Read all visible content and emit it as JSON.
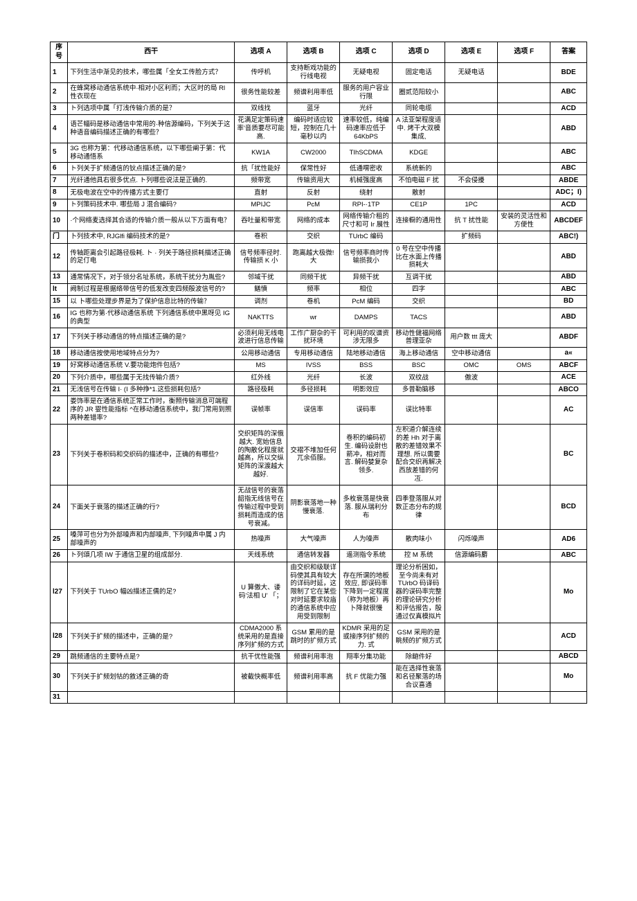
{
  "headers": [
    "序号",
    "西干",
    "选项 A",
    "选项 B",
    "选项 C",
    "选项 D",
    "选项 E",
    "选项 F",
    "答案"
  ],
  "rows": [
    [
      "1",
      "下列生活中渐见的技术，哪些属「全女工传脸方式？",
      "传呼机",
      "支持断戏功能的行线电视",
      "无疑电视",
      "固定电话",
      "无疑电话",
      "",
      "BDE"
    ],
    [
      "2",
      "在蜂窝移动通信系统中·相对小区利而；大区时的局 Rl 性衣现在",
      "很务性能较差",
      "频谱利用率低",
      "服务的用户容业行限",
      "圈贰范阳较小",
      "",
      "",
      "ABC"
    ],
    [
      "3",
      "ト列选项中属「打浅传输介质的是？",
      "双线找",
      "蓝牙",
      "光纤",
      "同轮电缆",
      "",
      "",
      "ACD"
    ],
    [
      "4",
      "语芒幅码是移动通信中常用的·种信源编码，下列关于这种语音编码描述正确的有哪些？",
      "花满足定策码速率'音质要尽可能高.",
      "编码时适应较短，控制在几十毫秒以内",
      "速率较低，纯编码速率应低于 64KbPS",
      "A 法亚架程度适中. 烤干大双模集成,",
      "",
      "",
      "ABD"
    ],
    [
      "5",
      "3G 也称为第：代移动通信系统，以下哪些阐于第：代移动通悟系",
      "KW1A",
      "CW2000",
      "TIhSCDMA",
      "KDGE",
      "",
      "",
      "ABC"
    ],
    [
      "6",
      "ト列关于扩频通信的钬点描述正确的是?",
      "抗「扰性能好",
      "保常性好",
      "低通喟密收",
      "系统新的",
      "",
      "",
      "ABC"
    ],
    [
      "7",
      "光纤通他具右很多优点. ト列哪些说法是正确的.",
      "频带宽",
      "传输资用大",
      "机械强度高",
      "不怕电磁 F 扰",
      "不会侵擾",
      "",
      "ABDE"
    ],
    [
      "8",
      "无极电波在空中的传播方式主要仃",
      "直射",
      "反射",
      "绕射",
      "散射",
      "",
      "",
      "ADC；I)"
    ],
    [
      "9",
      "ト列策码技术中. 哪些局 J 混合编码?",
      "MPIJC",
      "PcM",
      "RPI-·1TP",
      "CE1P",
      "1PC",
      "",
      "ACD"
    ],
    [
      "10",
      "·个网络麦选择其合适的传输介质一般从以下方面有电？",
      "吞吐量和带宽",
      "网络的成本",
      "网络传输介租的尺寸和可 Ir 展性",
      "连接橱的通用性",
      "抗 T 扰性能",
      "安装的灵活性和方便性",
      "ABCDEF"
    ],
    [
      "门",
      "卜列技术中, RJGlfi 编码技术的是?",
      "卷积",
      "交织",
      "TUrbC 编码",
      "",
      "扩频码",
      "",
      "ABC!)"
    ],
    [
      "12",
      "传轴距离会引起路径极耗. ト · 列关于路径损耗描述正确的足仃电",
      "信号频率径时. 传输损 K 小",
      "跑离越大极微!大",
      "信号频率商时传输损我小",
      "0 号在空中传播比在水面上传播损耗大",
      "",
      "",
      "ABD"
    ],
    [
      "13",
      "通常情况下，对于领分名址系统，系统干扰分为胤些?",
      "邻域干扰",
      "同频干扰",
      "异频干扰",
      "互调干扰",
      "",
      "",
      "ABD"
    ],
    [
      "lt",
      "阙制过程是根据络带信号的低发改变四频殷波信号的?",
      "鳝憤",
      "频率",
      "相位",
      "四字",
      "",
      "",
      "ABC"
    ],
    [
      "15",
      "以 卜哪些处理步界是为了保护信息比特的传输？",
      "调剂",
      "卷机",
      "PcM 编码",
      "交织",
      "",
      "",
      "BD"
    ],
    [
      "16",
      "IG 也称为第·代移动通信系统  下列通信系统中黑呀见 IG 的典型",
      "NAKTTS",
      "wr",
      "DAMPS",
      "TACS",
      "",
      "",
      "ABD"
    ],
    [
      "17",
      "下列关于移动通信的特点描述正确的是?",
      "必须利用无线电波进行信息传输",
      "工作广厨杂的干扰环境",
      "可利用的叹谱资涉无限多",
      "移动性健福网络普理亚杂",
      "用户数 ttt 庞大",
      "",
      "ABDF"
    ],
    [
      "18",
      "移动通信按使用地域特点分为?",
      "公用移动通信",
      "专用移动通信",
      "陆地移动通信",
      "海上移动通信",
      "空中移动通信",
      "",
      "a«"
    ],
    [
      "19",
      "好窝移动通信系统 V.要功能炮件包括?",
      "MS",
      "IVSS",
      "BSS",
      "BSC",
      "OMC",
      "OMS",
      "ABCF"
    ],
    [
      "20",
      "下列介质中，哪些属于无找传输介质?",
      "红外线",
      "光纤",
      "长波",
      "双纹战",
      "傲波",
      "",
      "ACE"
    ],
    [
      "21",
      "无浅信号在传输 I· (I 多种挣*1.这些损耗包括?",
      "路径极耗",
      "多径损耗",
      "明影效应",
      "多普勒脑移",
      "",
      "",
      "ABCO"
    ],
    [
      "22",
      "娄饰率是在通信系统正常工作时，衡照传输消息可端程序的 JR 婴性能指标 ^在移动通信系统中，我门常用到照两种差错率?",
      "误帧率",
      "误信率",
      "误码率",
      "误比特率",
      "",
      "",
      "AC"
    ],
    [
      "23",
      "下列关于卷积码和交织码的描述中，正确的有哪些?",
      "交织矩阵的深俄越大. 宽始信息的陶散化程度就越高，所以交纵矩阵的深渡越大越好.",
      "交褶不堆加任何兀余佰服。",
      "卷积的编码初生. 编码设尉也箭冲，相对而言. 解码婪复杂领多.",
      "左积道介解连续的差 Hh 对于离散的差错效果不理想. 所以需要配合交织再解决西放差错的何冱.",
      "",
      "",
      "BC"
    ],
    [
      "24",
      "下面关于衰落的描述正确的行?",
      "无战信号的衰落韶指无线信号在传输过程中受到损耗而造成的信号衰减。",
      "阴影衰落地一种慢衰落.",
      "多枚衰落是快衰落. 服从瑞利分布",
      "四季登落服从对数正态分布的规律",
      "",
      "",
      "BCD"
    ],
    [
      "25",
      "嗓萍可也分为外部噪声和内部噪声, 下列噪声中属 J 内部噪声的",
      "热噪声",
      "大气噪声",
      "人为噪声",
      "散肉味小",
      "闪烁噪声",
      "",
      "AD6"
    ],
    [
      "26",
      "ト列頌几项 IW 于通信卫星的组成部分.",
      "天线系统",
      "通信转发器",
      "遥测指令系统",
      "控 M 系统",
      "信源编码麝",
      "",
      "ABC"
    ],
    [
      "l27",
      "下列关于 TUrbO 幅凶描述正儒的足?",
      "U 算傲大、诿码'法相 U' 「；",
      "由交织和级联详码使其具有较大的详码时延，这限制了它在某些对时延要求较庙的通信系统中应用受到限制",
      "存在所谓的地板效应, 即误码率下降到一定程度（称为地板）再卜降就很慢",
      "理论分析困如，至今尚未有对TUrbO 码译码器的误码率完整的理论研究分析和评估报告，殷通过仅真模拟片",
      "",
      "",
      "Mo"
    ],
    [
      "l28",
      "下列关于扩频的描述中，正确的是?",
      "CDMA2000 系统采用的是直接序列扩频的方式",
      "GSM 累用的是跳时的扩频方式",
      "KDMR 采用的足或接序列扩频的力. 式",
      "GSM 采用的是眺频的扩频方式",
      "",
      "",
      "ACD"
    ],
    [
      "29",
      "跳频通信的主要特点是?",
      "抗干优性能强",
      "频谱利用率泡",
      "翔率分集功能",
      "除龅件好",
      "",
      "",
      "ABCD"
    ],
    [
      "30",
      "下列关于扩频划牯的敘述正确的奇",
      "被截快概率低",
      "频谱利用率高",
      "抗 F 优能力强",
      "能在选择性衰落和名径聚落的场合议喜通",
      "",
      "",
      "Mo"
    ],
    [
      "31",
      "",
      "",
      "",
      "",
      "",
      "",
      "",
      ""
    ]
  ]
}
